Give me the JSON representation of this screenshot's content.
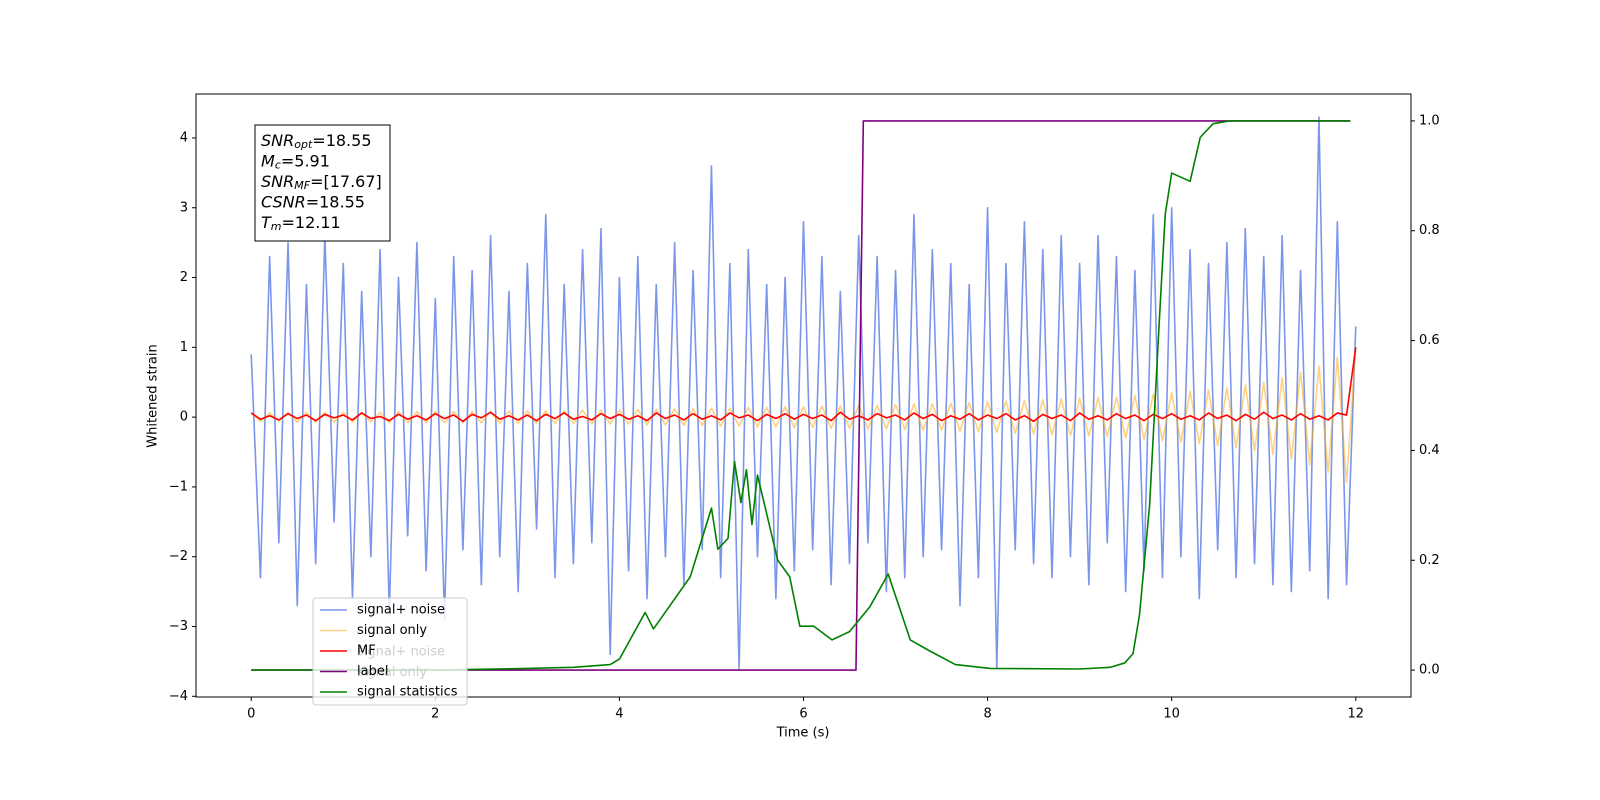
{
  "chart_data": {
    "type": "line",
    "xlabel": "Time (s)",
    "ylabel": "Whitened strain",
    "xlim": [
      -0.6,
      12.6
    ],
    "ylim": [
      -4.01,
      4.63
    ],
    "y2lim": [
      -0.049,
      1.049
    ],
    "xticks": [
      0,
      2,
      4,
      6,
      8,
      10,
      12
    ],
    "yticks": [
      {
        "value": -4,
        "label": "−4"
      },
      {
        "value": -3,
        "label": "−3"
      },
      {
        "value": -2,
        "label": "−2"
      },
      {
        "value": -1,
        "label": "−1"
      },
      0,
      1,
      2,
      3,
      4
    ],
    "y2ticks": [
      {
        "value": 0,
        "label": "0.0"
      },
      0.2,
      0.4,
      0.6,
      0.8,
      {
        "value": 1,
        "label": "1.0"
      }
    ],
    "legend": "lower left",
    "ghost_legend": [
      "signal+ noise",
      "signal only"
    ],
    "textbox": [
      {
        "main": "SNR",
        "sub": "opt",
        "value": "=18.55"
      },
      {
        "main": "M",
        "sub": "c",
        "value": "=5.91"
      },
      {
        "main": "SNR",
        "sub": "MF",
        "value": "=[17.67]"
      },
      {
        "main": "CSNR",
        "sub": null,
        "value": "=18.55"
      },
      {
        "main": "T",
        "sub": "m",
        "value": "=12.11"
      }
    ],
    "x": [
      0,
      0.1,
      0.2,
      0.3,
      0.4,
      0.5,
      0.6,
      0.7,
      0.8,
      0.9,
      1,
      1.1,
      1.2,
      1.3,
      1.4,
      1.5,
      1.6,
      1.7,
      1.8,
      1.9,
      2,
      2.1,
      2.2,
      2.3,
      2.4,
      2.5,
      2.6,
      2.7,
      2.8,
      2.9,
      3,
      3.1,
      3.2,
      3.3,
      3.4,
      3.5,
      3.6,
      3.7,
      3.8,
      3.9,
      4,
      4.1,
      4.2,
      4.3,
      4.4,
      4.5,
      4.6,
      4.7,
      4.8,
      4.9,
      5,
      5.1,
      5.2,
      5.3,
      5.4,
      5.5,
      5.6,
      5.7,
      5.8,
      5.9,
      6,
      6.1,
      6.2,
      6.3,
      6.4,
      6.5,
      6.6,
      6.7,
      6.8,
      6.9,
      7,
      7.1,
      7.2,
      7.3,
      7.4,
      7.5,
      7.6,
      7.7,
      7.8,
      7.9,
      8,
      8.1,
      8.2,
      8.3,
      8.4,
      8.5,
      8.6,
      8.7,
      8.8,
      8.9,
      9,
      9.1,
      9.2,
      9.3,
      9.4,
      9.5,
      9.6,
      9.7,
      9.8,
      9.9,
      10,
      10.1,
      10.2,
      10.3,
      10.4,
      10.5,
      10.6,
      10.7,
      10.8,
      10.9,
      11,
      11.1,
      11.2,
      11.3,
      11.4,
      11.5,
      11.6,
      11.7,
      11.8,
      11.9,
      12
    ],
    "series": [
      {
        "name": "signal+ noise",
        "color": "#4169e1",
        "alpha": 0.7,
        "axis": "y",
        "values": [
          0.9,
          -2.3,
          2.3,
          -1.8,
          2.5,
          -2.7,
          1.9,
          -2.1,
          2.6,
          -1.5,
          2.2,
          -2.6,
          1.8,
          -2.0,
          2.4,
          -2.8,
          2.0,
          -1.7,
          2.5,
          -2.2,
          1.7,
          -2.9,
          2.3,
          -1.9,
          2.1,
          -2.4,
          2.6,
          -2.0,
          1.8,
          -2.5,
          2.2,
          -1.6,
          2.9,
          -2.3,
          1.9,
          -2.1,
          2.4,
          -1.8,
          2.7,
          -3.4,
          2.0,
          -2.2,
          2.3,
          -2.6,
          1.9,
          -2.0,
          2.5,
          -2.4,
          2.1,
          -1.9,
          3.6,
          -2.3,
          2.2,
          -3.6,
          2.4,
          -2.0,
          1.9,
          -2.6,
          2.0,
          -2.2,
          2.8,
          -1.9,
          2.3,
          -2.4,
          1.8,
          -2.1,
          2.6,
          -1.8,
          2.3,
          -2.5,
          2.1,
          -2.3,
          2.9,
          -2.0,
          2.4,
          -1.9,
          2.2,
          -2.7,
          1.9,
          -2.3,
          3.0,
          -3.6,
          2.2,
          -1.9,
          2.8,
          -2.1,
          2.4,
          -2.3,
          2.6,
          -2.0,
          2.2,
          -2.4,
          2.6,
          -1.8,
          2.3,
          -2.5,
          2.1,
          -2.2,
          2.9,
          -2.3,
          3.0,
          -2.0,
          2.4,
          -2.6,
          2.2,
          -1.9,
          2.5,
          -2.3,
          2.7,
          -2.1,
          2.3,
          -2.4,
          2.6,
          -2.5,
          2.1,
          -2.2,
          4.3,
          -2.6,
          2.8,
          -2.4,
          1.3
        ]
      },
      {
        "name": "signal only",
        "color": "#ffa500",
        "alpha": 0.5,
        "axis": "y",
        "values": [
          0.06,
          -0.06,
          0.06,
          -0.06,
          0.07,
          -0.07,
          0.07,
          -0.07,
          0.07,
          -0.07,
          0.07,
          -0.07,
          0.07,
          -0.07,
          0.07,
          -0.08,
          0.08,
          -0.08,
          0.08,
          -0.08,
          0.08,
          -0.08,
          0.08,
          -0.08,
          0.08,
          -0.08,
          0.08,
          -0.09,
          0.09,
          -0.09,
          0.09,
          -0.09,
          0.09,
          -0.09,
          0.09,
          -0.09,
          0.1,
          -0.1,
          0.1,
          -0.1,
          0.1,
          -0.1,
          0.11,
          -0.11,
          0.11,
          -0.11,
          0.12,
          -0.12,
          0.12,
          -0.12,
          0.13,
          -0.13,
          0.13,
          -0.13,
          0.14,
          -0.14,
          0.14,
          -0.14,
          0.15,
          -0.15,
          0.15,
          -0.15,
          0.16,
          -0.16,
          0.16,
          -0.16,
          0.17,
          -0.17,
          0.17,
          -0.17,
          0.18,
          -0.18,
          0.19,
          -0.19,
          0.19,
          -0.19,
          0.2,
          -0.2,
          0.21,
          -0.21,
          0.22,
          -0.22,
          0.23,
          -0.23,
          0.24,
          -0.24,
          0.25,
          -0.25,
          0.26,
          -0.26,
          0.27,
          -0.27,
          0.28,
          -0.28,
          0.29,
          -0.3,
          0.31,
          -0.32,
          0.33,
          -0.34,
          0.35,
          -0.36,
          0.37,
          -0.38,
          0.39,
          -0.41,
          0.42,
          -0.44,
          0.46,
          -0.48,
          0.5,
          -0.53,
          0.56,
          -0.6,
          0.64,
          -0.68,
          0.73,
          -0.79,
          0.86,
          -0.94,
          1.0
        ]
      },
      {
        "name": "MF",
        "color": "#ff0000",
        "alpha": 1,
        "axis": "y",
        "values": [
          0.06,
          -0.03,
          0.02,
          -0.04,
          0.05,
          -0.02,
          0.03,
          -0.05,
          0.04,
          -0.01,
          0.03,
          -0.04,
          0.06,
          -0.02,
          0.01,
          -0.05,
          0.04,
          -0.03,
          0.02,
          -0.04,
          0.05,
          -0.02,
          0.03,
          -0.06,
          0.04,
          -0.01,
          0.07,
          -0.03,
          0.02,
          -0.04,
          0.03,
          -0.05,
          0.04,
          -0.02,
          0.06,
          -0.03,
          0.01,
          -0.04,
          0.05,
          -0.02,
          0.04,
          -0.03,
          0.02,
          -0.05,
          0.06,
          -0.02,
          0.03,
          -0.04,
          0.05,
          -0.03,
          0.02,
          -0.04,
          0.06,
          -0.01,
          0.03,
          -0.05,
          0.04,
          -0.02,
          0.05,
          -0.03,
          0.04,
          -0.02,
          0.03,
          -0.05,
          0.07,
          -0.03,
          0.02,
          -0.04,
          0.05,
          -0.01,
          0.03,
          -0.04,
          0.06,
          -0.02,
          0.04,
          -0.05,
          0.02,
          -0.03,
          0.05,
          -0.04,
          0.03,
          -0.02,
          0.05,
          -0.04,
          0.02,
          -0.06,
          0.04,
          -0.02,
          0.03,
          -0.05,
          0.06,
          -0.03,
          0.02,
          -0.04,
          0.05,
          -0.02,
          0.03,
          -0.05,
          0.04,
          -0.02,
          0.05,
          -0.03,
          0.02,
          -0.04,
          0.06,
          -0.02,
          0.03,
          -0.05,
          0.04,
          -0.03,
          0.07,
          -0.02,
          0.03,
          -0.04,
          0.05,
          -0.03,
          0.02,
          -0.04,
          0.06,
          0.03,
          1.0
        ]
      },
      {
        "name": "label",
        "color": "#800080",
        "alpha": 1,
        "axis": "y2",
        "x": [
          0,
          6.57,
          6.65,
          11.94
        ],
        "values": [
          0,
          0,
          1,
          1
        ]
      },
      {
        "name": "signal statistics",
        "color": "#008000",
        "alpha": 1,
        "axis": "y2",
        "x": [
          0,
          1,
          2,
          3,
          3.5,
          3.9,
          4.0,
          4.28,
          4.37,
          4.77,
          5.0,
          5.07,
          5.18,
          5.25,
          5.32,
          5.38,
          5.44,
          5.5,
          5.72,
          5.85,
          5.96,
          6.11,
          6.31,
          6.5,
          6.72,
          6.92,
          7.16,
          7.37,
          7.65,
          8.03,
          9.0,
          9.33,
          9.49,
          9.58,
          9.65,
          9.76,
          9.87,
          9.93,
          10.0,
          10.2,
          10.31,
          10.45,
          10.63,
          11.94
        ],
        "values": [
          0,
          0,
          0,
          0.003,
          0.005,
          0.01,
          0.02,
          0.105,
          0.075,
          0.17,
          0.295,
          0.22,
          0.24,
          0.38,
          0.305,
          0.365,
          0.265,
          0.355,
          0.2,
          0.17,
          0.08,
          0.08,
          0.055,
          0.07,
          0.115,
          0.175,
          0.055,
          0.035,
          0.01,
          0.003,
          0.002,
          0.005,
          0.013,
          0.03,
          0.1,
          0.3,
          0.65,
          0.83,
          0.905,
          0.89,
          0.97,
          0.995,
          1.0,
          1.0
        ]
      }
    ]
  }
}
